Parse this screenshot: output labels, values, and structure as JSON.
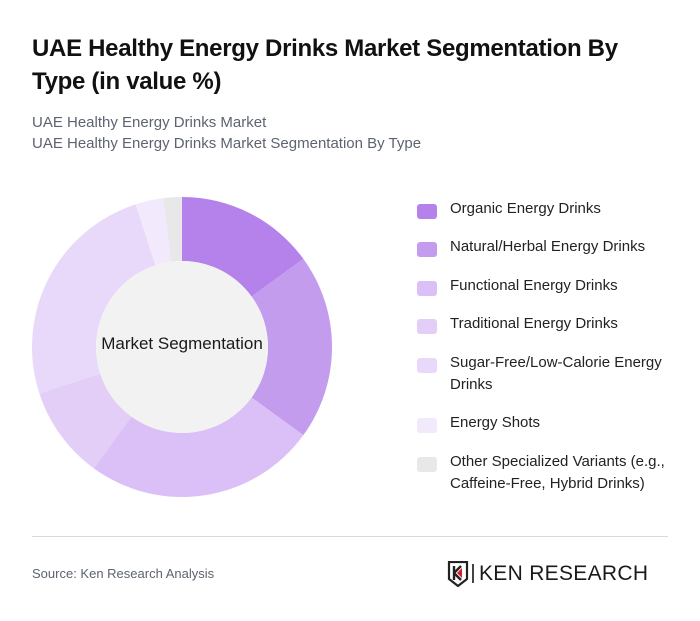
{
  "header": {
    "title": "UAE Healthy Energy Drinks Market Segmentation By Type (in value %)",
    "subtitle_1": "UAE Healthy Energy Drinks Market",
    "subtitle_2": "UAE Healthy Energy Drinks Market Segmentation By Type"
  },
  "chart": {
    "center_label": "Market Segmentation"
  },
  "legend": {
    "items": [
      {
        "label": "Organic Energy Drinks",
        "color": "#B482EA"
      },
      {
        "label": "Natural/Herbal Energy Drinks",
        "color": "#C49CEE"
      },
      {
        "label": "Functional Energy Drinks",
        "color": "#DAC0F6"
      },
      {
        "label": "Traditional Energy Drinks",
        "color": "#E2CEF7"
      },
      {
        "label": "Sugar-Free/Low-Calorie Energy Drinks",
        "color": "#E8D9FA"
      },
      {
        "label": "Energy Shots",
        "color": "#F2EAFC"
      },
      {
        "label": "Other Specialized Variants (e.g., Caffeine-Free, Hybrid Drinks)",
        "color": "#E8E8E8"
      }
    ]
  },
  "footer": {
    "source": "Source: Ken Research Analysis",
    "logo_text": "KEN RESEARCH"
  },
  "chart_data": {
    "type": "pie",
    "variant": "donut",
    "title": "UAE Healthy Energy Drinks Market Segmentation By Type (in value %)",
    "center_label": "Market Segmentation",
    "categories": [
      "Organic Energy Drinks",
      "Natural/Herbal Energy Drinks",
      "Functional Energy Drinks",
      "Traditional Energy Drinks",
      "Sugar-Free/Low-Calorie Energy Drinks",
      "Energy Shots",
      "Other Specialized Variants (e.g., Caffeine-Free, Hybrid Drinks)"
    ],
    "values": [
      15,
      20,
      25,
      10,
      25,
      3,
      2
    ],
    "colors": [
      "#B482EA",
      "#C49CEE",
      "#DAC0F6",
      "#E2CEF7",
      "#E8D9FA",
      "#F2EAFC",
      "#E8E8E8"
    ],
    "unit": "%",
    "start_angle": "12 o'clock, clockwise",
    "legend_position": "right"
  }
}
